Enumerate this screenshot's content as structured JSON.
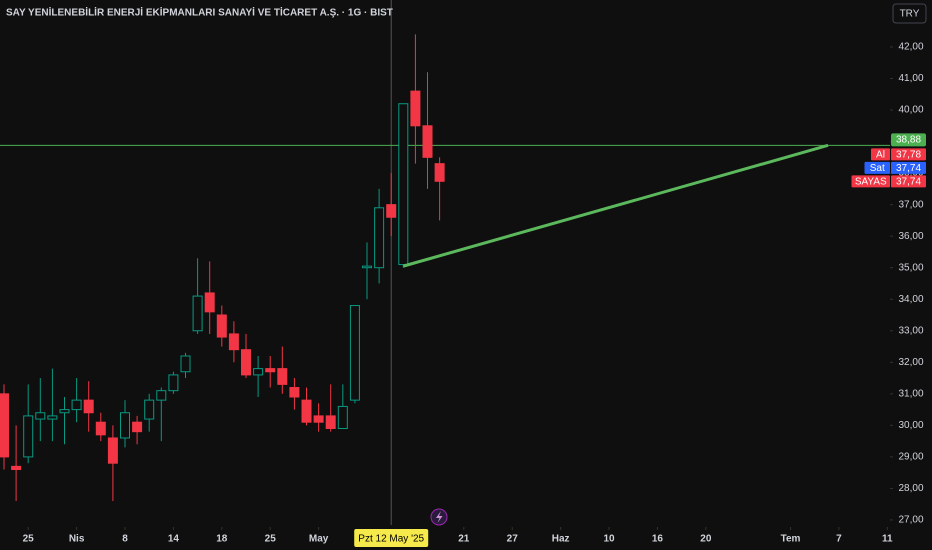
{
  "chart_data": {
    "type": "candlestick",
    "title": "SAY YENİLENEBİLİR ENERJİ EKİPMANLARI SANAYİ VE TİCARET A.Ş. · 1G · BIST",
    "currency": "TRY",
    "up_color": "#089981",
    "down_color": "#f23645",
    "open": [
      31.0,
      28.7,
      29.0,
      30.2,
      30.2,
      30.4,
      30.5,
      30.8,
      30.1,
      29.6,
      29.6,
      30.1,
      30.2,
      30.8,
      31.1,
      31.7,
      33.0,
      34.2,
      33.5,
      32.9,
      32.4,
      31.6,
      31.8,
      31.8,
      31.2,
      30.8,
      30.3,
      30.3,
      29.9,
      30.8,
      35.0,
      35.0,
      37.0,
      35.1,
      40.6,
      39.5,
      38.3
    ],
    "high": [
      31.3,
      30.0,
      31.3,
      31.5,
      31.8,
      30.9,
      31.5,
      31.4,
      30.4,
      30.0,
      30.8,
      30.3,
      31.0,
      31.2,
      31.7,
      32.3,
      35.3,
      35.2,
      33.8,
      33.3,
      32.9,
      32.2,
      32.2,
      32.5,
      31.5,
      31.2,
      30.7,
      31.3,
      31.3,
      33.8,
      35.8,
      37.5,
      38.0,
      40.2,
      42.4,
      41.2,
      38.5
    ],
    "low": [
      28.6,
      27.6,
      28.8,
      29.5,
      29.5,
      29.4,
      30.1,
      29.8,
      29.5,
      27.6,
      29.3,
      29.4,
      29.8,
      29.5,
      31.0,
      31.5,
      32.9,
      32.9,
      32.5,
      32.0,
      31.5,
      30.9,
      31.2,
      31.0,
      30.5,
      30.0,
      29.8,
      29.8,
      29.9,
      30.7,
      34.0,
      34.5,
      36.0,
      35.0,
      38.3,
      37.5,
      36.5
    ],
    "close": [
      29.0,
      28.6,
      30.3,
      30.4,
      30.3,
      30.5,
      30.8,
      30.4,
      29.7,
      28.8,
      30.4,
      29.8,
      30.8,
      31.1,
      31.6,
      32.2,
      34.1,
      33.6,
      32.8,
      32.4,
      31.6,
      31.8,
      31.7,
      31.3,
      30.9,
      30.1,
      30.1,
      29.9,
      30.6,
      33.8,
      35.05,
      36.9,
      36.6,
      40.2,
      39.5,
      38.5,
      37.74
    ],
    "xlim": [
      -0.33,
      73.22
    ],
    "xticks": [
      {
        "value": 2,
        "label": "25"
      },
      {
        "value": 6,
        "label": "Nis"
      },
      {
        "value": 10,
        "label": "8"
      },
      {
        "value": 14,
        "label": "14"
      },
      {
        "value": 18,
        "label": "18"
      },
      {
        "value": 22,
        "label": "25"
      },
      {
        "value": 26,
        "label": "May"
      },
      {
        "value": 38,
        "label": "21"
      },
      {
        "value": 42,
        "label": "27"
      },
      {
        "value": 46,
        "label": "Haz"
      },
      {
        "value": 50,
        "label": "10"
      },
      {
        "value": 54,
        "label": "16"
      },
      {
        "value": 58,
        "label": "20"
      },
      {
        "value": 65,
        "label": "Tem"
      },
      {
        "value": 69,
        "label": "7"
      },
      {
        "value": 73,
        "label": "11"
      }
    ],
    "crosshair": {
      "value": 32,
      "label": "Pzt 12 May '25"
    },
    "ylim": [
      26.84,
      43.49
    ],
    "yticks": [
      {
        "value": 42,
        "label": "42,00"
      },
      {
        "value": 41,
        "label": "41,00"
      },
      {
        "value": 40,
        "label": "40,00"
      },
      {
        "value": 39,
        "label": "39,00"
      },
      {
        "value": 38,
        "label": "38,00"
      },
      {
        "value": 37,
        "label": "37,00"
      },
      {
        "value": 36,
        "label": "36,00"
      },
      {
        "value": 35,
        "label": "35,00"
      },
      {
        "value": 34,
        "label": "34,00"
      },
      {
        "value": 33,
        "label": "33,00"
      },
      {
        "value": 32,
        "label": "32,00"
      },
      {
        "value": 31,
        "label": "31,00"
      },
      {
        "value": 30,
        "label": "30,00"
      },
      {
        "value": 29,
        "label": "29,00"
      },
      {
        "value": 28,
        "label": "28,00"
      },
      {
        "value": 27,
        "label": "27,00"
      }
    ],
    "price_line": {
      "value": 38.88,
      "label": "38,88",
      "color": "#4caf50"
    },
    "price_labels": [
      {
        "name": "Al",
        "value": 37.78,
        "label": "37,78",
        "color": "#f23645"
      },
      {
        "name": "Sat",
        "value": 37.74,
        "label": "37,74",
        "color": "#2962ff"
      },
      {
        "name": "SAYAS",
        "value": 37.74,
        "label": "37,74",
        "color": "#f23645"
      }
    ],
    "trendline": {
      "x": [
        33,
        68.1
      ],
      "y": [
        35.05,
        38.88
      ],
      "color": "#5cb85c"
    }
  }
}
